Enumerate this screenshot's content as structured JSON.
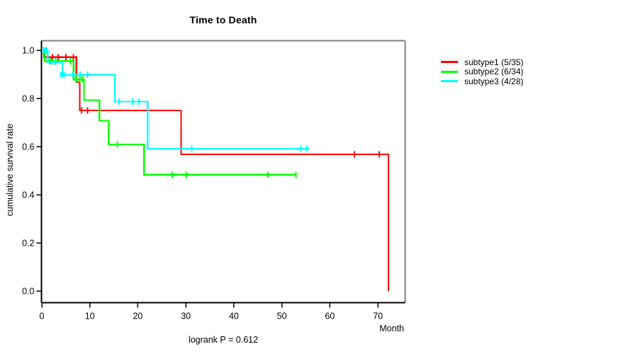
{
  "chart_data": {
    "type": "line",
    "subtype": "kaplan-meier-step",
    "title": "Time to Death",
    "xlabel": "Month",
    "ylabel": "cumulative survival rate",
    "annotation": "logrank P = 0.612",
    "xticks": [
      0,
      10,
      20,
      30,
      40,
      50,
      60,
      70
    ],
    "yticks": [
      0.0,
      0.2,
      0.4,
      0.6,
      0.8,
      1.0
    ],
    "xlim": [
      0,
      75.7
    ],
    "ylim": [
      -0.04,
      1.04
    ],
    "grid": false,
    "legend_position": "right-outside",
    "series": [
      {
        "name": "subtype1",
        "events": "5/35",
        "legend_label": "subtype1 (5/35)",
        "color": "#ff0000",
        "steps": [
          [
            0,
            1.0
          ],
          [
            0.45,
            0.971
          ],
          [
            7.2,
            0.868
          ],
          [
            7.9,
            0.75
          ],
          [
            29.0,
            0.568
          ],
          [
            72.2,
            0.0
          ]
        ],
        "end_month": 72.2,
        "censors": [
          [
            1.2,
            0.971
          ],
          [
            2.2,
            0.971
          ],
          [
            3.4,
            0.971
          ],
          [
            5.0,
            0.971
          ],
          [
            6.6,
            0.971
          ],
          [
            8.3,
            0.75
          ],
          [
            9.5,
            0.75
          ],
          [
            65.1,
            0.568
          ],
          [
            70.3,
            0.568
          ]
        ],
        "squares": []
      },
      {
        "name": "subtype2",
        "events": "6/34",
        "legend_label": "subtype2 (6/34)",
        "color": "#00ff00",
        "steps": [
          [
            0,
            1.0
          ],
          [
            0.6,
            0.955
          ],
          [
            6.6,
            0.879
          ],
          [
            8.8,
            0.793
          ],
          [
            12.0,
            0.707
          ],
          [
            13.9,
            0.609
          ],
          [
            21.3,
            0.483
          ]
        ],
        "end_month": 53.0,
        "censors": [
          [
            0.35,
            1.0
          ],
          [
            0.9,
            1.0
          ],
          [
            1.6,
            0.955
          ],
          [
            2.0,
            0.955
          ],
          [
            2.9,
            0.955
          ],
          [
            6.0,
            0.955
          ],
          [
            7.2,
            0.879
          ],
          [
            7.9,
            0.879
          ],
          [
            8.4,
            0.879
          ],
          [
            15.7,
            0.609
          ],
          [
            27.2,
            0.483
          ],
          [
            30.1,
            0.483
          ],
          [
            47.1,
            0.483
          ],
          [
            52.9,
            0.483
          ]
        ],
        "squares": []
      },
      {
        "name": "subtype3",
        "events": "4/28",
        "legend_label": "subtype3 (4/28)",
        "color": "#00ffff",
        "steps": [
          [
            0,
            1.0
          ],
          [
            1.2,
            0.951
          ],
          [
            4.3,
            0.898
          ],
          [
            15.2,
            0.787
          ],
          [
            22.05,
            0.591
          ]
        ],
        "end_month": 55.8,
        "censors": [
          [
            2.8,
            0.951
          ],
          [
            6.4,
            0.898
          ],
          [
            8.0,
            0.898
          ],
          [
            9.5,
            0.898
          ],
          [
            16.1,
            0.787
          ],
          [
            18.9,
            0.787
          ],
          [
            20.2,
            0.787
          ],
          [
            31.2,
            0.591
          ],
          [
            54.0,
            0.591
          ],
          [
            55.2,
            0.591
          ]
        ],
        "squares": [
          [
            0.75,
            1.0
          ],
          [
            4.28,
            0.898
          ]
        ]
      }
    ],
    "axis_colors": {
      "left_bottom": "#000000",
      "top_right": "#808080"
    },
    "tick_label_format_y": "one_decimal"
  }
}
